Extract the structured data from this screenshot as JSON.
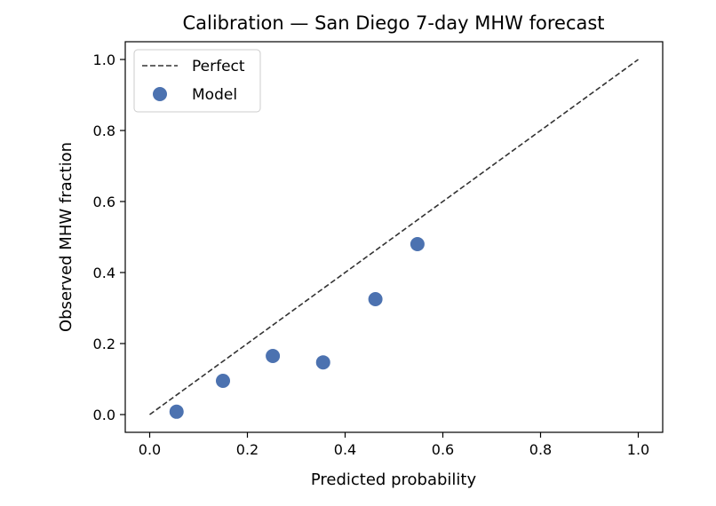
{
  "chart_data": {
    "type": "scatter",
    "title": "Calibration — San Diego 7-day MHW forecast",
    "xlabel": "Predicted probability",
    "ylabel": "Observed MHW fraction",
    "xlim": [
      -0.05,
      1.05
    ],
    "ylim": [
      -0.05,
      1.05
    ],
    "xticks": [
      "0.0",
      "0.2",
      "0.4",
      "0.6",
      "0.8",
      "1.0"
    ],
    "yticks": [
      "0.0",
      "0.2",
      "0.4",
      "0.6",
      "0.8",
      "1.0"
    ],
    "grid": false,
    "legend_position": "upper-left",
    "series": [
      {
        "name": "Perfect",
        "kind": "line",
        "style": "dashed",
        "color": "#333333",
        "x": [
          0.0,
          1.0
        ],
        "y": [
          0.0,
          1.0
        ]
      },
      {
        "name": "Model",
        "kind": "scatter",
        "color": "#4c72b0",
        "x": [
          0.055,
          0.15,
          0.252,
          0.355,
          0.462,
          0.548
        ],
        "y": [
          0.008,
          0.095,
          0.165,
          0.147,
          0.325,
          0.48
        ]
      }
    ]
  }
}
